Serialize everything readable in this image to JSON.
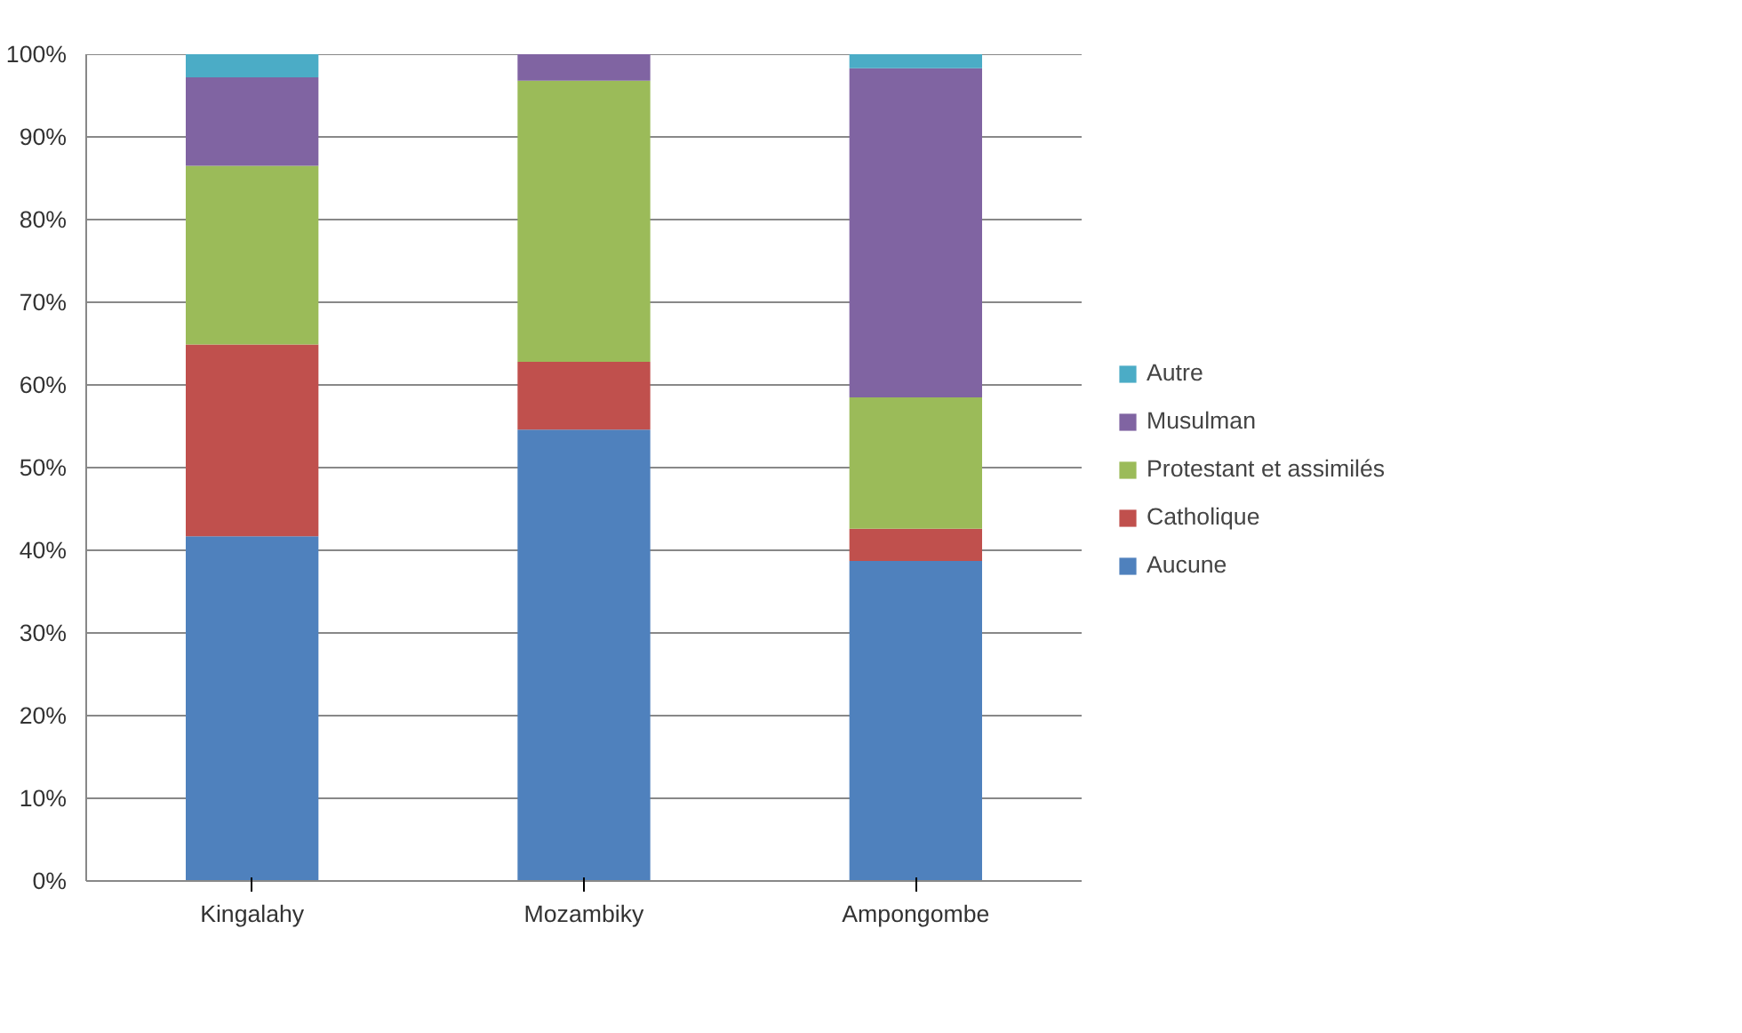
{
  "chart_data": {
    "type": "bar",
    "stacked": true,
    "categories": [
      "Kingalahy",
      "Mozambiky",
      "Ampongombe"
    ],
    "series": [
      {
        "name": "Aucune",
        "color": "#4f81bd",
        "values": [
          41.7,
          54.6,
          38.7
        ]
      },
      {
        "name": "Catholique",
        "color": "#c0504d",
        "values": [
          23.2,
          8.2,
          3.9
        ]
      },
      {
        "name": "Protestant et assimilés",
        "color": "#9bbb59",
        "values": [
          21.6,
          34.0,
          15.9
        ]
      },
      {
        "name": "Musulman",
        "color": "#8064a2",
        "values": [
          10.7,
          3.2,
          39.8
        ]
      },
      {
        "name": "Autre",
        "color": "#4bacc6",
        "values": [
          2.8,
          0,
          1.7
        ]
      }
    ],
    "ylim": [
      0,
      100
    ],
    "yticks": [
      {
        "value": 0,
        "label": "0%"
      },
      {
        "value": 10,
        "label": "10%"
      },
      {
        "value": 20,
        "label": "20%"
      },
      {
        "value": 30,
        "label": "30%"
      },
      {
        "value": 40,
        "label": "40%"
      },
      {
        "value": 50,
        "label": "50%"
      },
      {
        "value": 60,
        "label": "60%"
      },
      {
        "value": 70,
        "label": "70%"
      },
      {
        "value": 80,
        "label": "80%"
      },
      {
        "value": 90,
        "label": "90%"
      },
      {
        "value": 100,
        "label": "100%"
      }
    ],
    "grid": "y",
    "legend": "right"
  }
}
